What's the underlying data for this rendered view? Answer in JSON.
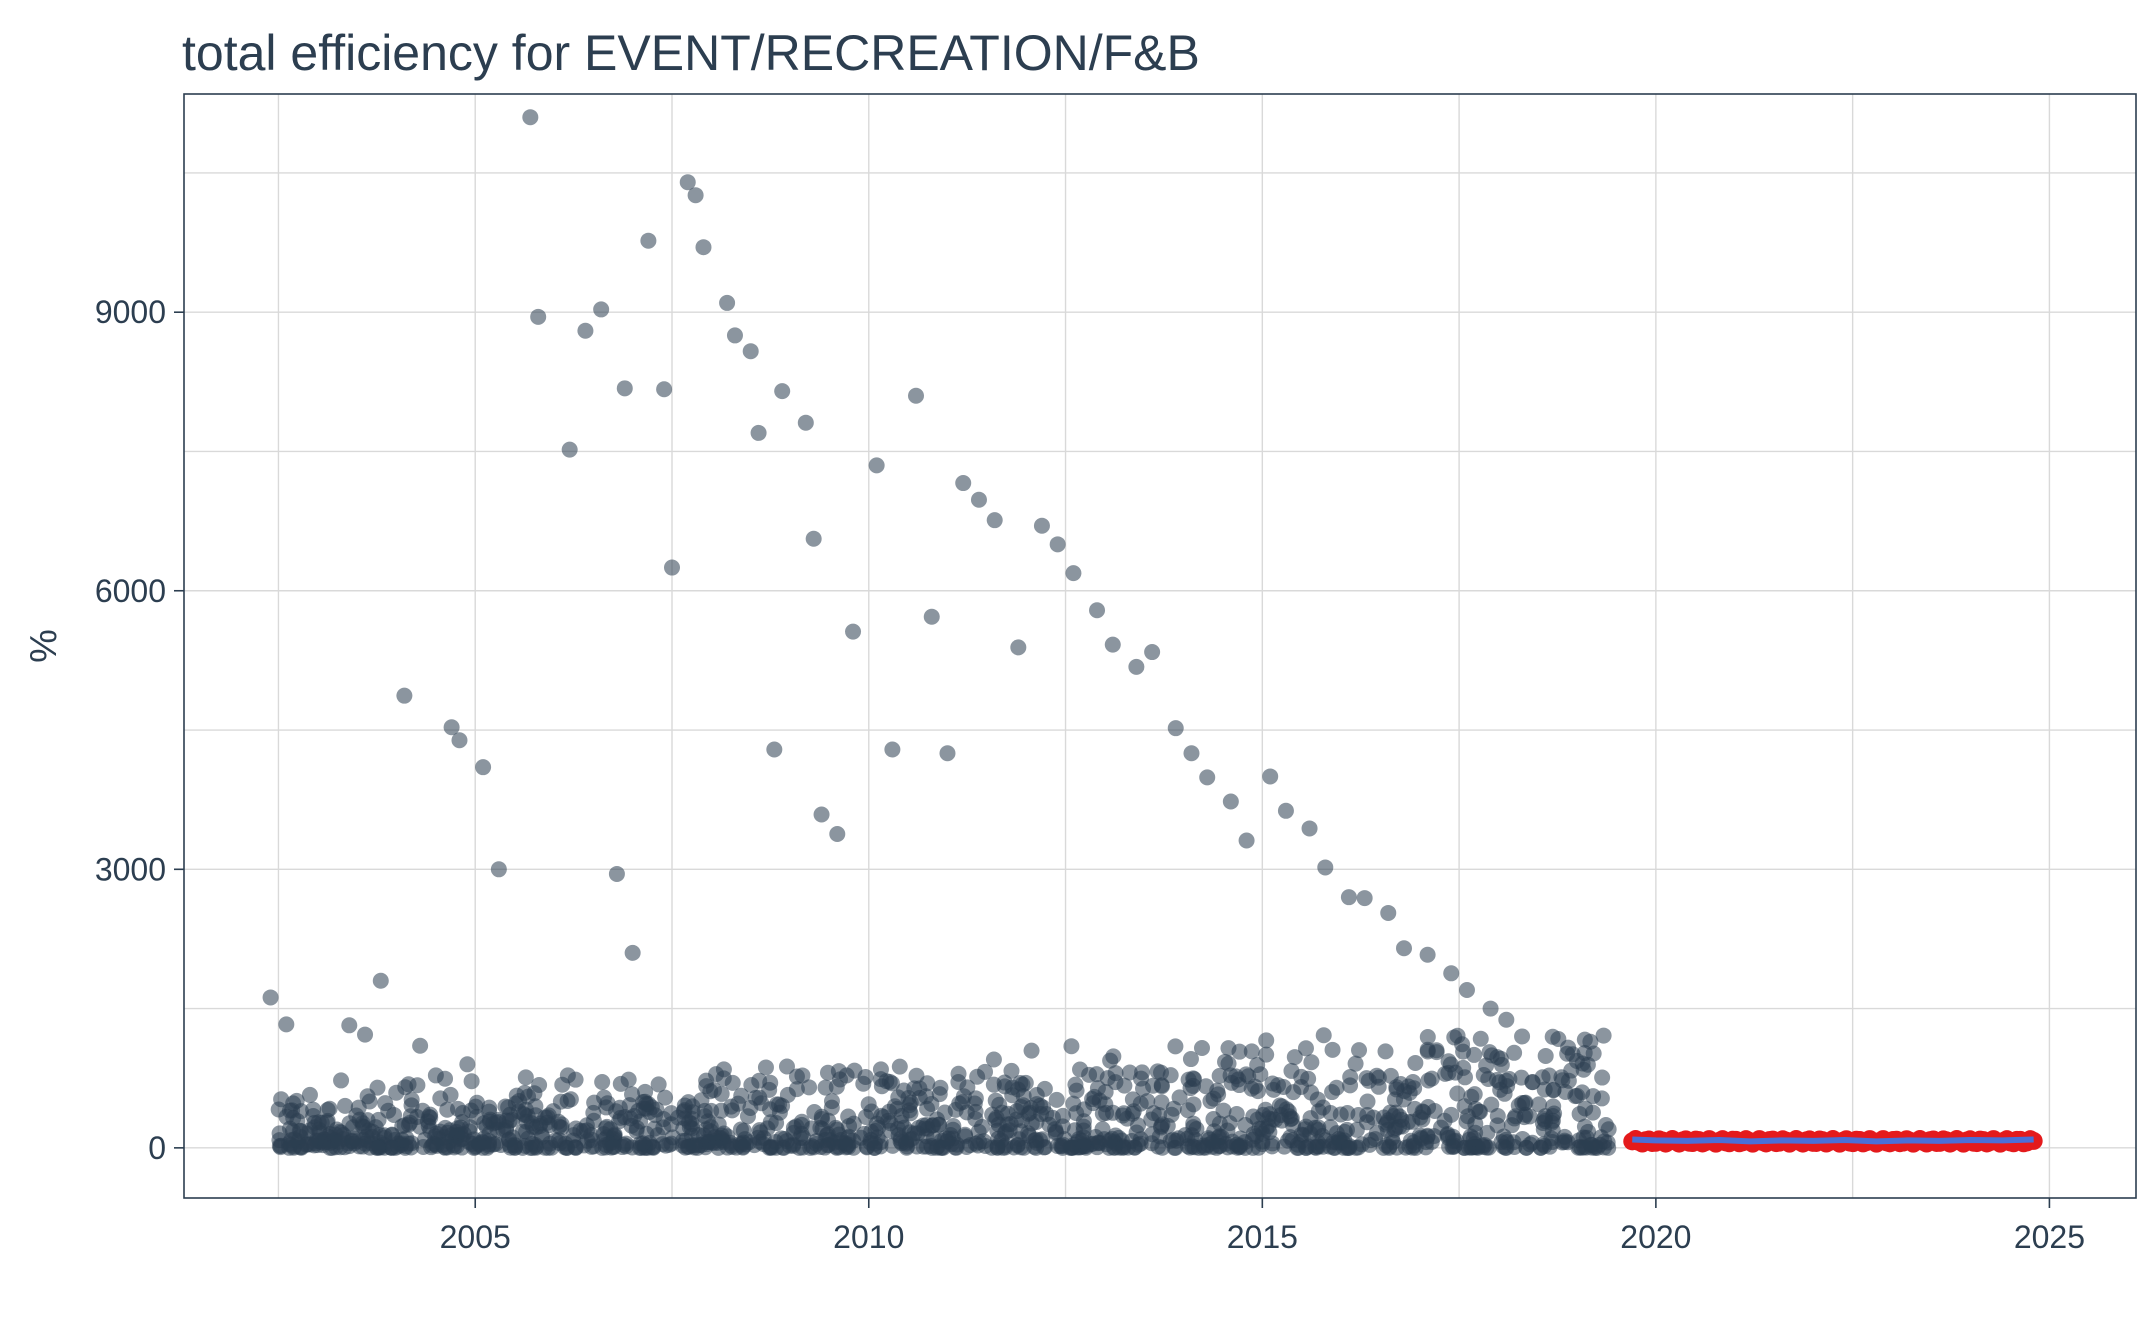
{
  "chart_data": {
    "type": "scatter",
    "title": "total efficiency for EVENT/RECREATION/F&B",
    "xlabel": "",
    "ylabel": "%",
    "xlim": [
      2001.3,
      2026.1
    ],
    "ylim": [
      -540,
      11350
    ],
    "x_ticks": [
      "2005",
      "2010",
      "2015",
      "2020",
      "2025"
    ],
    "x_tick_values": [
      2005,
      2010,
      2015,
      2020,
      2025
    ],
    "y_ticks": [
      "0",
      "3000",
      "6000",
      "9000"
    ],
    "y_tick_values": [
      0,
      3000,
      6000,
      9000
    ],
    "grid": true,
    "legend": "none",
    "colors": {
      "points": "#2c3e50",
      "forecast_points": "#e41a1c",
      "forecast_line": "#4a6fd8",
      "text": "#2c3e50",
      "grid": "#d9d9d9"
    },
    "series": [
      {
        "role": "observed",
        "color": "#2c3e50",
        "opacity": 0.55,
        "x": [
          2002.4,
          2002.6,
          2002.9,
          2003.4,
          2003.6,
          2003.8,
          2004.1,
          2004.3,
          2004.5,
          2004.7,
          2004.8,
          2004.9,
          2005.1,
          2005.3,
          2005.7,
          2005.8,
          2006.2,
          2006.4,
          2006.6,
          2006.8,
          2006.9,
          2007.0,
          2007.2,
          2007.4,
          2007.5,
          2007.7,
          2007.8,
          2007.9,
          2008.2,
          2008.3,
          2008.5,
          2008.6,
          2008.8,
          2008.9,
          2009.2,
          2009.3,
          2009.4,
          2009.6,
          2009.8,
          2010.1,
          2010.3,
          2010.6,
          2010.8,
          2011.0,
          2011.2,
          2011.4,
          2011.6,
          2011.9,
          2012.2,
          2012.4,
          2012.6,
          2012.9,
          2013.1,
          2013.4,
          2013.6,
          2013.9,
          2014.1,
          2014.3,
          2014.6,
          2014.8,
          2015.1,
          2015.3,
          2015.6,
          2015.8,
          2016.1,
          2016.3,
          2016.6,
          2016.8,
          2017.1,
          2017.4,
          2017.6,
          2017.9,
          2018.1,
          2018.3,
          2018.6,
          2018.8,
          2019.0,
          2019.2,
          2019.4
        ],
        "y": [
          1620,
          1330,
          570,
          1320,
          1220,
          1800,
          4870,
          1100,
          780,
          4530,
          4390,
          900,
          4100,
          3000,
          11100,
          8950,
          7520,
          8800,
          9030,
          2950,
          8180,
          2100,
          9770,
          8170,
          6250,
          10400,
          10260,
          9700,
          9100,
          8750,
          8580,
          7700,
          4290,
          8150,
          7810,
          6560,
          3590,
          3380,
          5560,
          7350,
          4290,
          8100,
          5720,
          4250,
          7160,
          6980,
          6760,
          5390,
          6700,
          6500,
          6190,
          5790,
          5420,
          5180,
          5340,
          4520,
          4250,
          3990,
          3730,
          3310,
          4000,
          3630,
          3440,
          3020,
          2700,
          2690,
          2530,
          2150,
          2080,
          1880,
          1700,
          1500,
          1380,
          1200,
          990,
          760,
          560,
          380,
          200
        ]
      }
    ],
    "forecast": {
      "x": [
        2019.7,
        2020.0,
        2020.4,
        2020.8,
        2021.2,
        2021.6,
        2022.0,
        2022.4,
        2022.8,
        2023.2,
        2023.6,
        2024.0,
        2024.4,
        2024.8
      ],
      "y": [
        90,
        80,
        75,
        85,
        70,
        80,
        75,
        85,
        70,
        80,
        75,
        85,
        80,
        90
      ]
    }
  }
}
